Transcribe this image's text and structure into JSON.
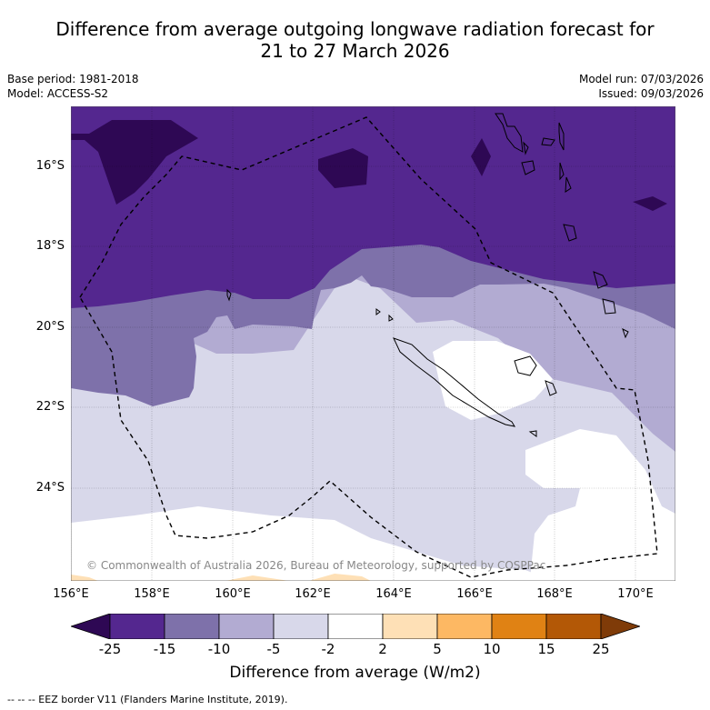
{
  "title": {
    "line1": "Difference from average outgoing longwave radiation forecast for",
    "line2": "21 to 27 March 2026"
  },
  "meta": {
    "base_period": "Base period: 1981-2018",
    "model": "Model: ACCESS-S2",
    "model_run": "Model run: 07/03/2026",
    "issued": "Issued: 09/03/2026"
  },
  "map": {
    "lat_labels": [
      "16°S",
      "18°S",
      "20°S",
      "22°S",
      "24°S"
    ],
    "lon_labels": [
      "156°E",
      "158°E",
      "160°E",
      "162°E",
      "164°E",
      "166°E",
      "168°E",
      "170°E"
    ],
    "credit": "© Commonwealth of Australia 2026, Bureau of Meteorology, supported by COSPPac",
    "colors": {
      "lt_neg25": "#2e0854",
      "neg25_neg15": "#54278f",
      "neg15_neg10": "#7e71aa",
      "neg10_neg5": "#b2abd2",
      "neg5_neg2": "#d8d8ea",
      "neg2_2": "#ffffff",
      "pos2_5": "#fee0b6",
      "pos5_10": "#fdb863",
      "pos10_15": "#e08214",
      "pos15_25": "#b35806",
      "gt25": "#7f3b08"
    }
  },
  "colorbar": {
    "ticks": [
      "-25",
      "-15",
      "-10",
      "-5",
      "-2",
      "2",
      "5",
      "10",
      "15",
      "25"
    ],
    "colors": [
      "#54278f",
      "#7e71aa",
      "#b2abd2",
      "#d8d8ea",
      "#ffffff",
      "#fee0b6",
      "#fdb863",
      "#e08214",
      "#b35806"
    ],
    "under_color": "#2e0854",
    "over_color": "#7f3b08",
    "label": "Difference from average (W/m2)"
  },
  "footer": {
    "legend": "-- -- -- EEZ border V11 (Flanders Marine Institute, 2019)."
  }
}
